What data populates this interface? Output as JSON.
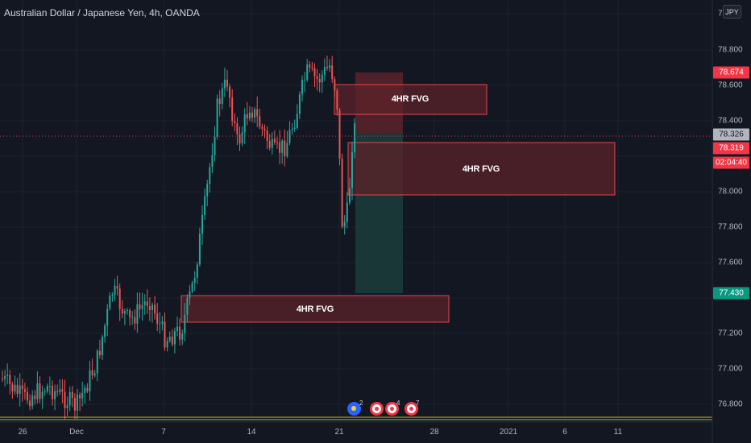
{
  "symbol": {
    "title": "Australian Dollar / Japanese Yen, 4h, OANDA"
  },
  "currency_badge": "JPY",
  "price_axis": {
    "top_partial": "7",
    "ticks": [
      "78.800",
      "78.600",
      "78.400",
      "78.000",
      "77.800",
      "77.600",
      "77.200",
      "77.000",
      "76.800"
    ]
  },
  "price_tags": {
    "upper_target": "78.674",
    "last_price": "78.326",
    "current_price": "78.319",
    "countdown": "02:04:40",
    "lower_target": "77.430"
  },
  "date_axis": [
    "26",
    "Dec",
    "7",
    "14",
    "21",
    "28",
    "2021",
    "6",
    "11"
  ],
  "zones": [
    {
      "label": "4HR FVG"
    },
    {
      "label": "4HR FVG"
    },
    {
      "label": "4HR FVG"
    }
  ],
  "events": [
    {
      "icon": "au-flag-icon",
      "count": "2"
    },
    {
      "icon": "jp-flag-icon",
      "count": ""
    },
    {
      "icon": "jp-flag-icon",
      "count": "4"
    },
    {
      "icon": "jp-flag-icon",
      "count": "7"
    }
  ],
  "colors": {
    "background": "#131722",
    "bull": "#26a69a",
    "bear": "#ef5350",
    "zone_fill": "#5c2329",
    "zone_border": "#e2464f",
    "position_target": "#1c3b3a",
    "last_price_tag": "#b2b5be",
    "current_price_tag": "#f23645",
    "lower_target_tag": "#089981"
  }
}
